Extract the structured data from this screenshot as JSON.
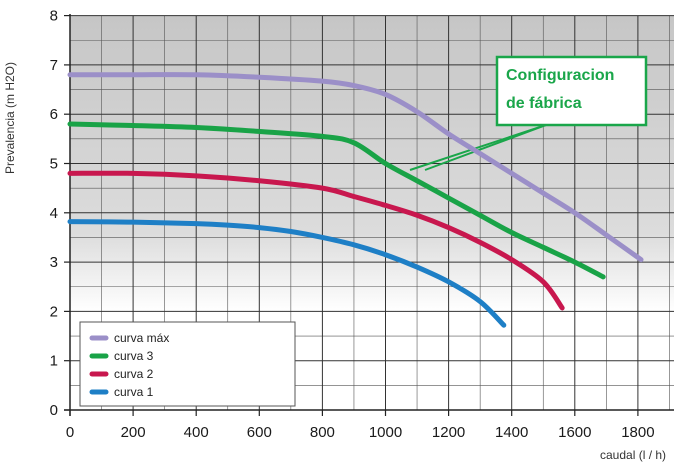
{
  "chart_data": {
    "type": "line",
    "xlabel": "caudal (l / h)",
    "ylabel": "Prevalencia (m H2O)",
    "xlim": [
      0,
      1900
    ],
    "ylim": [
      0,
      8
    ],
    "x_ticks": [
      "0",
      "200",
      "400",
      "600",
      "800",
      "1000",
      "1200",
      "1400",
      "1600",
      "1800"
    ],
    "y_ticks": [
      "0",
      "1",
      "2",
      "3",
      "4",
      "5",
      "6",
      "7",
      "8"
    ],
    "grid": true,
    "legend_position": "bottom-left",
    "series": [
      {
        "name": "curva máx",
        "color": "#9b8fc8",
        "points": [
          [
            0,
            6.8
          ],
          [
            200,
            6.8
          ],
          [
            400,
            6.8
          ],
          [
            600,
            6.75
          ],
          [
            800,
            6.67
          ],
          [
            900,
            6.58
          ],
          [
            1000,
            6.4
          ],
          [
            1100,
            6.05
          ],
          [
            1200,
            5.6
          ],
          [
            1300,
            5.2
          ],
          [
            1400,
            4.8
          ],
          [
            1500,
            4.4
          ],
          [
            1600,
            4.0
          ],
          [
            1700,
            3.55
          ],
          [
            1810,
            3.05
          ]
        ]
      },
      {
        "name": "curva 3",
        "color": "#19a347",
        "points": [
          [
            0,
            5.8
          ],
          [
            200,
            5.77
          ],
          [
            400,
            5.73
          ],
          [
            600,
            5.65
          ],
          [
            800,
            5.55
          ],
          [
            900,
            5.42
          ],
          [
            1000,
            5.0
          ],
          [
            1100,
            4.65
          ],
          [
            1200,
            4.3
          ],
          [
            1300,
            3.95
          ],
          [
            1400,
            3.6
          ],
          [
            1500,
            3.3
          ],
          [
            1600,
            3.0
          ],
          [
            1690,
            2.7
          ]
        ]
      },
      {
        "name": "curva 2",
        "color": "#c8174e",
        "points": [
          [
            0,
            4.8
          ],
          [
            200,
            4.8
          ],
          [
            400,
            4.75
          ],
          [
            600,
            4.65
          ],
          [
            800,
            4.5
          ],
          [
            900,
            4.33
          ],
          [
            1000,
            4.15
          ],
          [
            1100,
            3.95
          ],
          [
            1200,
            3.7
          ],
          [
            1300,
            3.4
          ],
          [
            1400,
            3.05
          ],
          [
            1500,
            2.6
          ],
          [
            1560,
            2.07
          ]
        ]
      },
      {
        "name": "curva 1",
        "color": "#1e7fc6",
        "points": [
          [
            0,
            3.82
          ],
          [
            200,
            3.81
          ],
          [
            400,
            3.78
          ],
          [
            500,
            3.75
          ],
          [
            600,
            3.7
          ],
          [
            700,
            3.62
          ],
          [
            800,
            3.5
          ],
          [
            900,
            3.35
          ],
          [
            1000,
            3.15
          ],
          [
            1100,
            2.9
          ],
          [
            1200,
            2.6
          ],
          [
            1300,
            2.2
          ],
          [
            1375,
            1.72
          ]
        ]
      }
    ],
    "annotation": {
      "text_lines": [
        "Configuracion",
        "de fábrica"
      ],
      "color": "#1aa64a",
      "points_to_series": "curva 3"
    }
  }
}
